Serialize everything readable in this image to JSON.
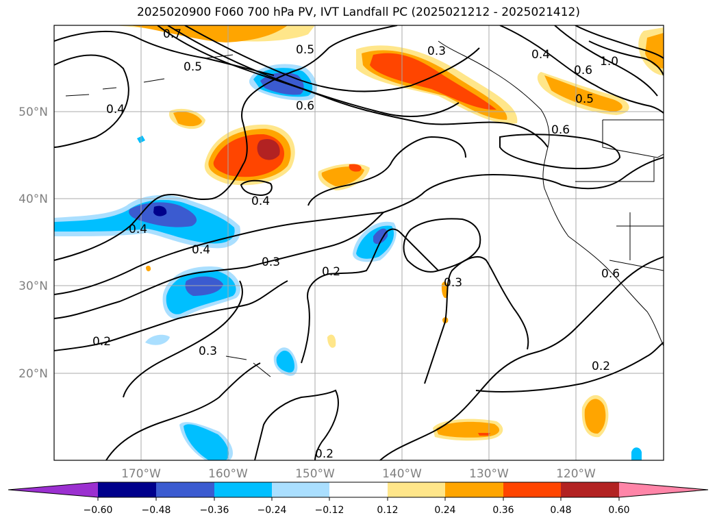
{
  "title": "2025020900 F060 700 hPa PV, IVT Landfall PC (2025021212 - 2025021412)",
  "map": {
    "lat_labels": [
      "50°N",
      "40°N",
      "30°N",
      "20°N"
    ],
    "lon_labels": [
      "170°W",
      "160°W",
      "150°W",
      "140°W",
      "130°W",
      "120°W"
    ],
    "contour_labels": [
      "0.5",
      "0.5",
      "0.3",
      "0.4",
      "1.0",
      "0.6",
      "0.6",
      "0.5",
      "0.4",
      "0.4",
      "0.4",
      "0.4",
      "0.3",
      "0.2",
      "0.3",
      "0.2",
      "0.3",
      "0.2",
      "0.6",
      "0.2",
      "0.6",
      "0.7"
    ],
    "gridlines": true,
    "coastline_color": "#000000"
  },
  "colorbar": {
    "tick_labels": [
      "−0.60",
      "−0.48",
      "−0.36",
      "−0.24",
      "−0.12",
      "0.12",
      "0.24",
      "0.36",
      "0.48",
      "0.60"
    ],
    "colors": [
      "#9b30d0",
      "#00008b",
      "#3b5bd0",
      "#00bfff",
      "#aadfff",
      "#ffffff",
      "#ffe68a",
      "#ffa500",
      "#ff4500",
      "#b22222",
      "#ff85a8"
    ]
  }
}
